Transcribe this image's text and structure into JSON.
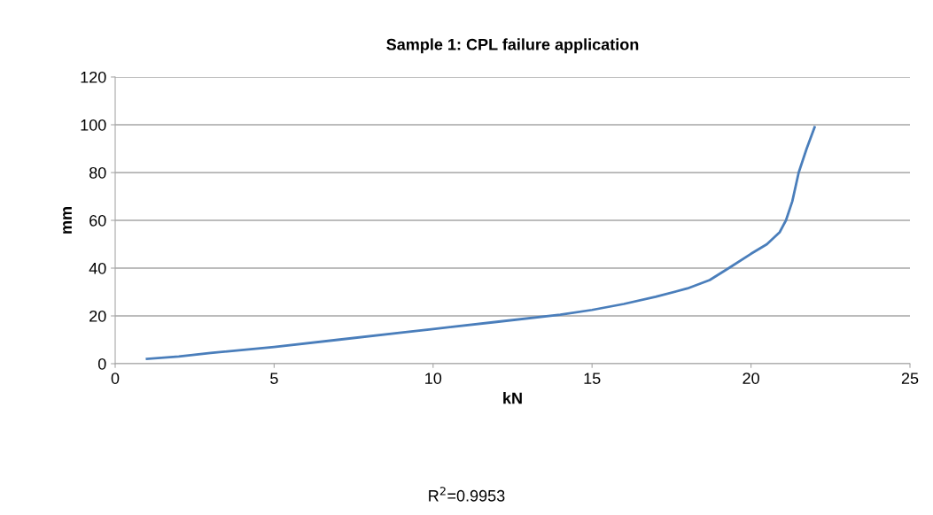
{
  "chart_data": {
    "type": "line",
    "title": "Sample 1: CPL failure application",
    "xlabel": "kN",
    "ylabel": "mm",
    "series": [
      {
        "color": "#4a7ebb",
        "x": [
          1,
          2,
          3,
          5,
          7,
          9,
          10,
          12,
          14,
          15,
          16,
          17,
          18,
          18.7,
          19.3,
          20,
          20.5,
          20.9,
          21.1,
          21.3,
          21.5,
          21.75,
          22
        ],
        "values": [
          2,
          3,
          4.5,
          7,
          10,
          13,
          14.5,
          17.5,
          20.5,
          22.5,
          25,
          28,
          31.5,
          35,
          40,
          46,
          50,
          55,
          60,
          68,
          80,
          90,
          99
        ]
      }
    ],
    "xlim": [
      0,
      25
    ],
    "xticks": [
      0,
      5,
      10,
      15,
      20,
      25
    ],
    "ylim": [
      0,
      120
    ],
    "yticks": [
      0,
      20,
      40,
      60,
      80,
      100,
      120
    ],
    "grid": "y",
    "marker": "none",
    "line_style": "solid",
    "legend": false,
    "annotations": [
      "R$^{2}$=0.9953"
    ]
  }
}
